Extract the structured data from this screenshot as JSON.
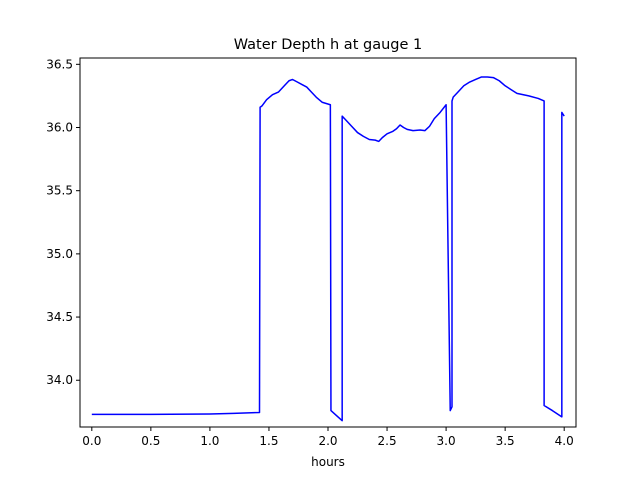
{
  "chart_data": {
    "type": "line",
    "title": "Water Depth h at gauge 1",
    "xlabel": "hours",
    "ylabel": "",
    "xlim": [
      -0.1,
      4.1
    ],
    "ylim": [
      33.63,
      36.55
    ],
    "xticks": [
      0.0,
      0.5,
      1.0,
      1.5,
      2.0,
      2.5,
      3.0,
      3.5,
      4.0
    ],
    "xtick_labels": [
      "0.0",
      "0.5",
      "1.0",
      "1.5",
      "2.0",
      "2.5",
      "3.0",
      "3.5",
      "4.0"
    ],
    "yticks": [
      34.0,
      34.5,
      35.0,
      35.5,
      36.0,
      36.5
    ],
    "ytick_labels": [
      "34.0",
      "34.5",
      "35.0",
      "35.5",
      "36.0",
      "36.5"
    ],
    "grid": false,
    "legend": "none",
    "series": [
      {
        "color": "#0000ff",
        "x": [
          0.0,
          0.5,
          1.0,
          1.2,
          1.42,
          1.425,
          1.44,
          1.48,
          1.53,
          1.58,
          1.63,
          1.67,
          1.7,
          1.74,
          1.78,
          1.82,
          1.86,
          1.9,
          1.95,
          2.02,
          2.025,
          2.06,
          2.12,
          2.12,
          2.15,
          2.2,
          2.25,
          2.3,
          2.35,
          2.4,
          2.43,
          2.46,
          2.5,
          2.55,
          2.58,
          2.61,
          2.64,
          2.67,
          2.72,
          2.78,
          2.82,
          2.86,
          2.9,
          2.95,
          3.0,
          3.035,
          3.035,
          3.05,
          3.05,
          3.06,
          3.1,
          3.15,
          3.2,
          3.25,
          3.3,
          3.35,
          3.4,
          3.45,
          3.5,
          3.55,
          3.6,
          3.7,
          3.78,
          3.83,
          3.83,
          3.9,
          3.98,
          3.98,
          4.0
        ],
        "y": [
          33.73,
          33.73,
          33.733,
          33.738,
          33.745,
          36.16,
          36.17,
          36.22,
          36.26,
          36.28,
          36.33,
          36.37,
          36.38,
          36.36,
          36.34,
          36.32,
          36.28,
          36.24,
          36.2,
          36.18,
          33.76,
          33.73,
          33.68,
          36.09,
          36.06,
          36.01,
          35.96,
          35.93,
          35.905,
          35.9,
          35.89,
          35.92,
          35.95,
          35.97,
          35.99,
          36.02,
          36.0,
          35.985,
          35.975,
          35.98,
          35.975,
          36.01,
          36.07,
          36.12,
          36.18,
          33.76,
          33.76,
          33.79,
          36.21,
          36.24,
          36.28,
          36.33,
          36.36,
          36.38,
          36.4,
          36.4,
          36.395,
          36.37,
          36.33,
          36.3,
          36.27,
          36.25,
          36.23,
          36.21,
          33.8,
          33.76,
          33.71,
          36.12,
          36.09
        ]
      }
    ]
  }
}
